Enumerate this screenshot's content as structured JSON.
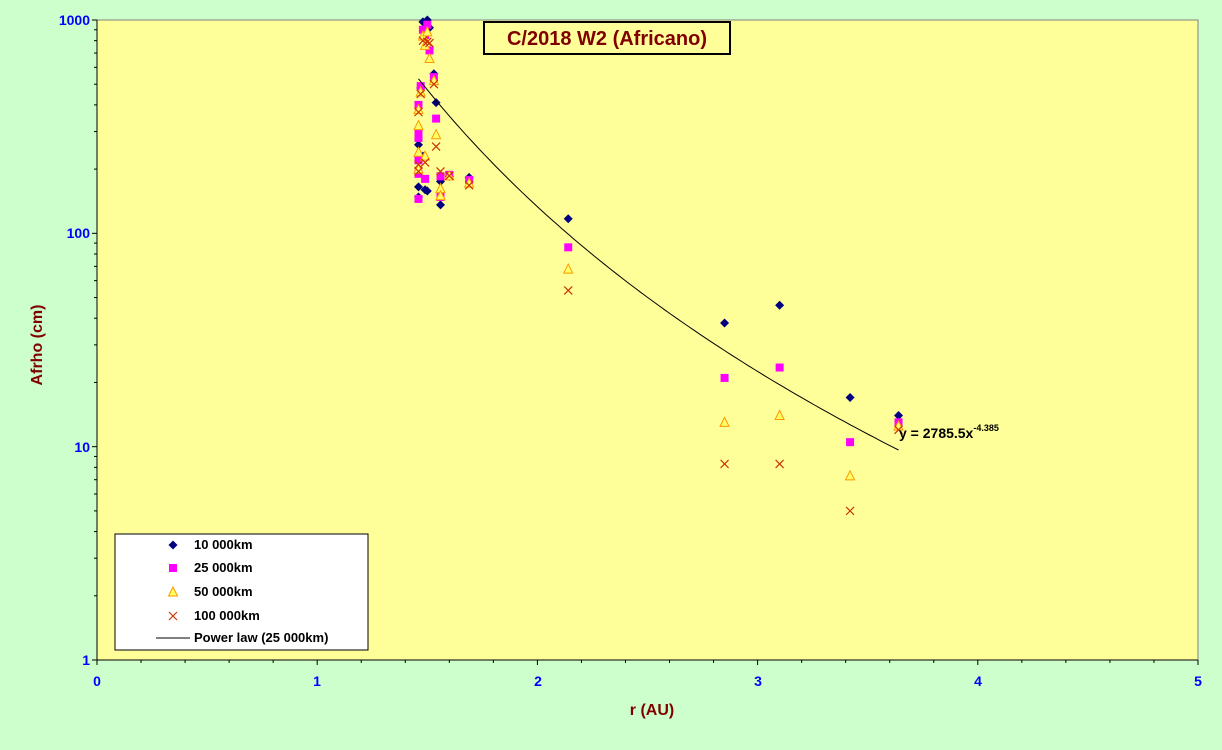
{
  "chart_data": {
    "type": "scatter",
    "title": "C/2018 W2 (Africano)",
    "xlabel": "r (AU)",
    "ylabel": "Afrho (cm)",
    "xlim": [
      0,
      5
    ],
    "ylim": [
      1,
      1000
    ],
    "y_scale": "log",
    "x_ticks": [
      "0",
      "1",
      "2",
      "3",
      "4",
      "5"
    ],
    "y_ticks": [
      "1",
      "10",
      "100",
      "1000"
    ],
    "grid": false,
    "legend_position": "bottom-left",
    "colors": {
      "plot_background": "#ffff99",
      "page_background": "#ccffcc",
      "tick_text": "#0000ff",
      "title_text": "#800000"
    },
    "series": [
      {
        "name": "10 000km",
        "marker": "diamond",
        "color": "#000080",
        "points": [
          [
            1.46,
            260
          ],
          [
            1.46,
            165
          ],
          [
            1.46,
            148
          ],
          [
            1.47,
            480
          ],
          [
            1.48,
            230
          ],
          [
            1.48,
            980
          ],
          [
            1.49,
            160
          ],
          [
            1.5,
            158
          ],
          [
            1.5,
            1000
          ],
          [
            1.51,
            920
          ],
          [
            1.53,
            560
          ],
          [
            1.54,
            410
          ],
          [
            1.56,
            175
          ],
          [
            1.56,
            136
          ],
          [
            1.6,
            185
          ],
          [
            1.69,
            183
          ],
          [
            2.14,
            117
          ],
          [
            2.85,
            38
          ],
          [
            3.1,
            46
          ],
          [
            3.42,
            17
          ],
          [
            3.64,
            14
          ]
        ]
      },
      {
        "name": "25 000km",
        "marker": "square",
        "color": "#ff00ff",
        "points": [
          [
            1.46,
            400
          ],
          [
            1.46,
            300
          ],
          [
            1.46,
            280
          ],
          [
            1.46,
            220
          ],
          [
            1.46,
            190
          ],
          [
            1.46,
            145
          ],
          [
            1.47,
            490
          ],
          [
            1.48,
            900
          ],
          [
            1.49,
            850
          ],
          [
            1.49,
            180
          ],
          [
            1.5,
            950
          ],
          [
            1.51,
            720
          ],
          [
            1.53,
            540
          ],
          [
            1.54,
            345
          ],
          [
            1.56,
            185
          ],
          [
            1.56,
            148
          ],
          [
            1.6,
            188
          ],
          [
            1.69,
            178
          ],
          [
            2.14,
            86
          ],
          [
            2.85,
            21
          ],
          [
            3.1,
            23.5
          ],
          [
            3.42,
            10.5
          ],
          [
            3.64,
            13
          ]
        ]
      },
      {
        "name": "50 000km",
        "marker": "triangle",
        "color": "#ff9900",
        "points": [
          [
            1.46,
            380
          ],
          [
            1.46,
            320
          ],
          [
            1.46,
            240
          ],
          [
            1.46,
            200
          ],
          [
            1.47,
            460
          ],
          [
            1.48,
            840
          ],
          [
            1.49,
            760
          ],
          [
            1.49,
            230
          ],
          [
            1.5,
            880
          ],
          [
            1.51,
            660
          ],
          [
            1.53,
            520
          ],
          [
            1.54,
            290
          ],
          [
            1.56,
            162
          ],
          [
            1.56,
            150
          ],
          [
            1.6,
            186
          ],
          [
            1.69,
            172
          ],
          [
            2.14,
            68
          ],
          [
            2.85,
            13
          ],
          [
            3.1,
            14
          ],
          [
            3.42,
            7.3
          ],
          [
            3.64,
            12.5
          ]
        ]
      },
      {
        "name": "100 000km",
        "marker": "x",
        "color": "#cc3300",
        "points": [
          [
            1.46,
            370
          ],
          [
            1.46,
            210
          ],
          [
            1.46,
            195
          ],
          [
            1.47,
            450
          ],
          [
            1.48,
            800
          ],
          [
            1.49,
            215
          ],
          [
            1.5,
            790
          ],
          [
            1.51,
            780
          ],
          [
            1.53,
            500
          ],
          [
            1.54,
            255
          ],
          [
            1.56,
            195
          ],
          [
            1.6,
            186
          ],
          [
            1.69,
            168
          ],
          [
            2.14,
            54
          ],
          [
            2.85,
            8.3
          ],
          [
            3.1,
            8.3
          ],
          [
            3.42,
            5
          ],
          [
            3.64,
            12
          ]
        ]
      }
    ],
    "trendline": {
      "name": "Power law (25 000km)",
      "type": "power",
      "coefficient": 2785.5,
      "exponent": -4.385,
      "x_range": [
        1.46,
        3.64
      ],
      "color": "#000000"
    },
    "equation": {
      "main": "y = 2785.5x",
      "sup": "-4.385"
    }
  }
}
